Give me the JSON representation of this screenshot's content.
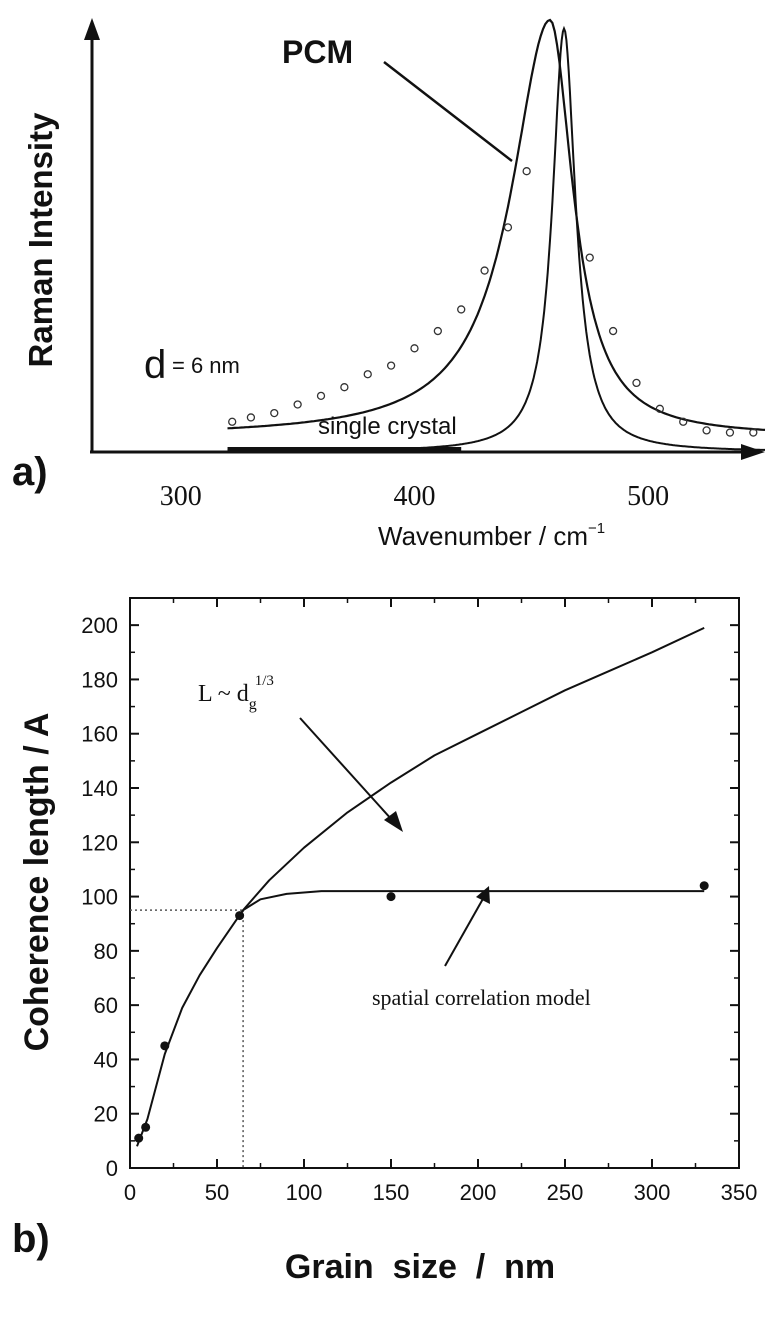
{
  "chart_data": [
    {
      "panel": "a)",
      "type": "line",
      "title": "",
      "xlabel": "Wavenumber / cm",
      "xlabel_sup": "−1",
      "ylabel": "Raman  Intensity",
      "xlim": [
        262,
        550
      ],
      "ylim": [
        0,
        1.0
      ],
      "xticks": [
        "300",
        "400",
        "500"
      ],
      "xtick_values": [
        300,
        400,
        500
      ],
      "annotations": {
        "pcm": "PCM",
        "d_prefix": "d",
        "d_value": "= 6 nm",
        "single_crystal": "single crystal"
      },
      "series": [
        {
          "name": "PCM fit",
          "kind": "asymmetric-lorentzian",
          "peak_cm": 458,
          "x_start": 320,
          "x_end": 550,
          "values_note": "y at x: 320→0.07, 360→0.14, 400→0.24, 430→0.42, 450→0.72, 458→1.0, 470→0.55, 490→0.18, 520→0.06, 550→0.045"
        },
        {
          "name": "PCM data",
          "kind": "scatter",
          "marker": "open-circle",
          "x": [
            322,
            330,
            340,
            350,
            360,
            370,
            380,
            390,
            400,
            410,
            420,
            430,
            440,
            448,
            475,
            485,
            495,
            505,
            515,
            525,
            535,
            545
          ],
          "y": [
            0.07,
            0.08,
            0.09,
            0.11,
            0.13,
            0.15,
            0.18,
            0.2,
            0.24,
            0.28,
            0.33,
            0.42,
            0.52,
            0.65,
            0.45,
            0.28,
            0.16,
            0.1,
            0.07,
            0.05,
            0.045,
            0.045
          ]
        },
        {
          "name": "single crystal",
          "kind": "lorentzian",
          "peak_cm": 464,
          "x_start": 320,
          "x_end": 550
        }
      ]
    },
    {
      "panel": "b)",
      "type": "line",
      "title": "",
      "xlabel": "Grain  size  /  nm",
      "ylabel": "Coherence length  /  A",
      "xlim": [
        0,
        350
      ],
      "ylim": [
        0,
        210
      ],
      "xticks": [
        "0",
        "50",
        "100",
        "150",
        "200",
        "250",
        "300",
        "350"
      ],
      "xtick_values": [
        0,
        50,
        100,
        150,
        200,
        250,
        300,
        350
      ],
      "yticks": [
        "0",
        "20",
        "40",
        "60",
        "80",
        "100",
        "120",
        "140",
        "160",
        "180",
        "200"
      ],
      "ytick_values": [
        0,
        20,
        40,
        60,
        80,
        100,
        120,
        140,
        160,
        180,
        200
      ],
      "annotations": {
        "power_law_label": "L ~ d",
        "power_law_sub": "g",
        "power_law_sup": "1/3",
        "model_label": "spatial correlation model"
      },
      "reference_point": {
        "x": 65,
        "y": 95
      },
      "series": [
        {
          "name": "L ~ dg^1/3",
          "x": [
            4,
            10,
            20,
            30,
            40,
            50,
            65,
            80,
            100,
            125,
            150,
            175,
            200,
            225,
            250,
            275,
            300,
            330
          ],
          "y": [
            8,
            18,
            42,
            59,
            71,
            81,
            95,
            106,
            118,
            131,
            142,
            152,
            160,
            168,
            176,
            183,
            190,
            199
          ]
        },
        {
          "name": "spatial correlation model",
          "x": [
            65,
            75,
            90,
            110,
            130,
            160,
            200,
            250,
            300,
            330
          ],
          "y": [
            95,
            99,
            101,
            102,
            102,
            102,
            102,
            102,
            102,
            102
          ]
        },
        {
          "name": "data",
          "kind": "scatter",
          "x": [
            5,
            9,
            20,
            63,
            150,
            330
          ],
          "y": [
            11,
            15,
            45,
            93,
            100,
            104
          ]
        }
      ]
    }
  ]
}
